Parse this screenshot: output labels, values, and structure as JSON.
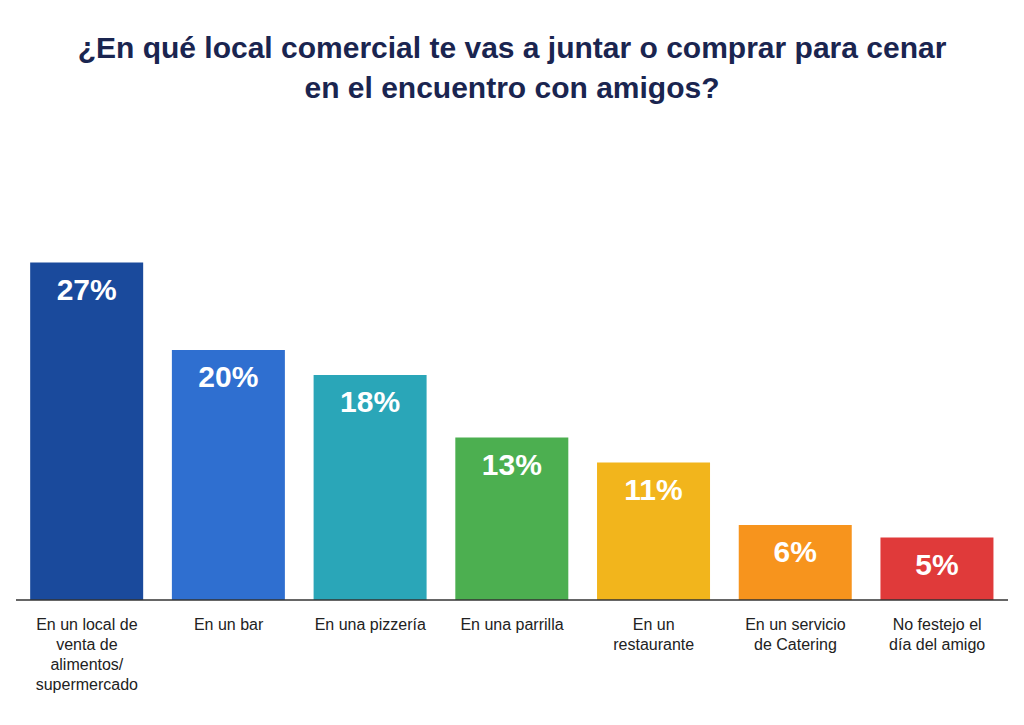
{
  "chart_data": {
    "type": "bar",
    "title": "¿En qué local comercial te vas a juntar o comprar para cenar en el encuentro con amigos?",
    "categories": [
      "En un local de venta de alimentos/ supermercado",
      "En un bar",
      "En una pizzería",
      "En una parrilla",
      "En un restaurante",
      "En un servicio de Catering",
      "No festejo el día del amigo"
    ],
    "values": [
      27,
      20,
      18,
      13,
      11,
      6,
      5
    ],
    "value_labels": [
      "27%",
      "20%",
      "18%",
      "13%",
      "11%",
      "6%",
      "5%"
    ],
    "colors": [
      "#1a4a9c",
      "#2f6fd0",
      "#2aa6b8",
      "#4caf50",
      "#f2b51c",
      "#f7941d",
      "#e03a3a"
    ],
    "ylim": [
      0,
      38
    ],
    "data_labels": true,
    "tick_labels": "x"
  }
}
